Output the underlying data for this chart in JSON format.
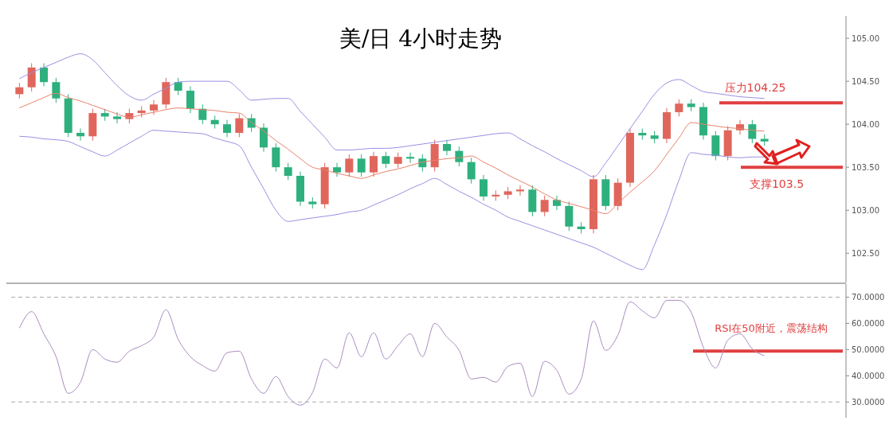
{
  "chart_data": [
    {
      "type": "candlestick",
      "title": "美/日 4小时走势",
      "categories": [
        null,
        null,
        null,
        null,
        null,
        null,
        null,
        null,
        null,
        null,
        null,
        null,
        null,
        null,
        null,
        null,
        null,
        null,
        null,
        null,
        null,
        null,
        null,
        null,
        null,
        null,
        null,
        null,
        null,
        null,
        null,
        null,
        null,
        null,
        null,
        null,
        null,
        null,
        null,
        null,
        null,
        null,
        null,
        null,
        null,
        null,
        null,
        null,
        null,
        null,
        null,
        null,
        null,
        null,
        null,
        null,
        null,
        null,
        null,
        null,
        null,
        null,
        null,
        null,
        null,
        null,
        null,
        null
      ],
      "ohlc": [
        [
          104.35,
          104.48,
          104.3,
          104.43
        ],
        [
          104.43,
          104.71,
          104.38,
          104.66
        ],
        [
          104.66,
          104.71,
          104.44,
          104.49
        ],
        [
          104.49,
          104.54,
          104.25,
          104.3
        ],
        [
          104.3,
          104.35,
          103.85,
          103.9
        ],
        [
          103.9,
          103.95,
          103.81,
          103.86
        ],
        [
          103.86,
          104.18,
          103.81,
          104.13
        ],
        [
          104.13,
          104.18,
          104.04,
          104.09
        ],
        [
          104.09,
          104.14,
          104.01,
          104.06
        ],
        [
          104.06,
          104.18,
          104.01,
          104.13
        ],
        [
          104.13,
          104.21,
          104.08,
          104.16
        ],
        [
          104.16,
          104.28,
          104.11,
          104.23
        ],
        [
          104.23,
          104.54,
          104.18,
          104.49
        ],
        [
          104.49,
          104.54,
          104.34,
          104.39
        ],
        [
          104.39,
          104.44,
          104.13,
          104.18
        ],
        [
          104.18,
          104.23,
          104.0,
          104.05
        ],
        [
          104.05,
          104.1,
          103.95,
          104.0
        ],
        [
          104.0,
          104.05,
          103.85,
          103.9
        ],
        [
          103.9,
          104.12,
          103.85,
          104.07
        ],
        [
          104.07,
          104.12,
          103.91,
          103.96
        ],
        [
          103.96,
          104.01,
          103.68,
          103.73
        ],
        [
          103.73,
          103.78,
          103.45,
          103.5
        ],
        [
          103.5,
          103.55,
          103.35,
          103.4
        ],
        [
          103.4,
          103.45,
          103.05,
          103.1
        ],
        [
          103.1,
          103.15,
          103.02,
          103.07
        ],
        [
          103.07,
          103.55,
          103.02,
          103.5
        ],
        [
          103.5,
          103.55,
          103.39,
          103.44
        ],
        [
          103.44,
          103.65,
          103.39,
          103.6
        ],
        [
          103.6,
          103.65,
          103.39,
          103.44
        ],
        [
          103.44,
          103.68,
          103.39,
          103.63
        ],
        [
          103.63,
          103.68,
          103.49,
          103.54
        ],
        [
          103.54,
          103.67,
          103.49,
          103.62
        ],
        [
          103.62,
          103.67,
          103.55,
          103.6
        ],
        [
          103.6,
          103.65,
          103.45,
          103.5
        ],
        [
          103.5,
          103.82,
          103.45,
          103.77
        ],
        [
          103.77,
          103.82,
          103.64,
          103.69
        ],
        [
          103.69,
          103.74,
          103.51,
          103.56
        ],
        [
          103.56,
          103.61,
          103.31,
          103.36
        ],
        [
          103.36,
          103.41,
          103.11,
          103.16
        ],
        [
          103.16,
          103.23,
          103.11,
          103.18
        ],
        [
          103.18,
          103.27,
          103.13,
          103.22
        ],
        [
          103.22,
          103.29,
          103.17,
          103.24
        ],
        [
          103.24,
          103.29,
          102.93,
          102.98
        ],
        [
          102.98,
          103.17,
          102.93,
          103.12
        ],
        [
          103.12,
          103.17,
          103.0,
          103.05
        ],
        [
          103.05,
          103.1,
          102.76,
          102.81
        ],
        [
          102.81,
          102.86,
          102.73,
          102.78
        ],
        [
          102.78,
          103.41,
          102.73,
          103.36
        ],
        [
          103.36,
          103.41,
          103.0,
          103.05
        ],
        [
          103.05,
          103.37,
          103.0,
          103.32
        ],
        [
          103.32,
          103.95,
          103.27,
          103.9
        ],
        [
          103.9,
          103.95,
          103.82,
          103.87
        ],
        [
          103.87,
          103.92,
          103.78,
          103.83
        ],
        [
          103.83,
          104.19,
          103.78,
          104.14
        ],
        [
          104.14,
          104.29,
          104.09,
          104.24
        ],
        [
          104.24,
          104.29,
          104.15,
          104.2
        ],
        [
          104.2,
          104.25,
          103.82,
          103.87
        ],
        [
          103.87,
          103.92,
          103.58,
          103.63
        ],
        [
          103.63,
          103.98,
          103.58,
          103.93
        ],
        [
          103.93,
          104.05,
          103.88,
          104.0
        ],
        [
          104.0,
          104.05,
          103.78,
          103.83
        ],
        [
          103.83,
          103.88,
          103.75,
          103.8
        ],
        null,
        null,
        null,
        null,
        null,
        null
      ],
      "colors": [
        "#e0665c",
        "#e0665c",
        "#2db07d",
        "#2db07d",
        "#2db07d",
        "#2db07d",
        "#e0665c",
        "#2db07d",
        "#2db07d",
        "#e0665c",
        "#e0665c",
        "#e0665c",
        "#e0665c",
        "#2db07d",
        "#2db07d",
        "#2db07d",
        "#2db07d",
        "#2db07d",
        "#e0665c",
        "#2db07d",
        "#2db07d",
        "#2db07d",
        "#2db07d",
        "#2db07d",
        "#2db07d",
        "#e0665c",
        "#2db07d",
        "#e0665c",
        "#2db07d",
        "#e0665c",
        "#2db07d",
        "#e0665c",
        "#2db07d",
        "#2db07d",
        "#e0665c",
        "#2db07d",
        "#2db07d",
        "#2db07d",
        "#2db07d",
        "#e0665c",
        "#e0665c",
        "#e0665c",
        "#2db07d",
        "#e0665c",
        "#2db07d",
        "#2db07d",
        "#2db07d",
        "#e0665c",
        "#2db07d",
        "#e0665c",
        "#e0665c",
        "#2db07d",
        "#2db07d",
        "#e0665c",
        "#e0665c",
        "#2db07d",
        "#2db07d",
        "#2db07d",
        "#e0665c",
        "#e0665c",
        "#2db07d",
        "#2db07d",
        null,
        null,
        null,
        null,
        null,
        null
      ],
      "series": [
        {
          "type": "line",
          "color": "#9a8fe0",
          "values": [
            104.53,
            104.6,
            104.66,
            104.72,
            104.78,
            104.82,
            104.75,
            104.6,
            104.45,
            104.33,
            104.28,
            104.35,
            104.42,
            104.49,
            104.5,
            104.5,
            104.5,
            104.5,
            104.4,
            104.28,
            104.29,
            104.3,
            104.3,
            104.15,
            104.0,
            103.85,
            103.7,
            103.7,
            103.71,
            103.72,
            103.72,
            103.73,
            103.75,
            103.77,
            103.79,
            103.81,
            103.83,
            103.85,
            103.87,
            103.89,
            103.9,
            103.83,
            103.75,
            103.68,
            103.6,
            103.53,
            103.46,
            103.39,
            103.55,
            103.75,
            103.95,
            104.15,
            104.35,
            104.48,
            104.52,
            104.45,
            104.38,
            104.36,
            104.34,
            104.32,
            104.31,
            104.3,
            null,
            null,
            null,
            null,
            null,
            null
          ]
        },
        {
          "type": "line",
          "color": "#e8826a",
          "values": [
            104.19,
            104.25,
            104.31,
            104.36,
            104.31,
            104.27,
            104.22,
            104.17,
            104.12,
            104.08,
            104.11,
            104.14,
            104.17,
            104.19,
            104.18,
            104.17,
            104.16,
            104.14,
            104.13,
            104.02,
            103.92,
            103.81,
            103.71,
            103.6,
            103.5,
            103.47,
            103.43,
            103.4,
            103.37,
            103.41,
            103.45,
            103.48,
            103.52,
            103.56,
            103.58,
            103.6,
            103.61,
            103.63,
            103.56,
            103.49,
            103.41,
            103.34,
            103.27,
            103.19,
            103.12,
            103.08,
            103.04,
            103.0,
            102.96,
            103.08,
            103.21,
            103.33,
            103.46,
            103.65,
            103.84,
            104.02,
            104.0,
            103.98,
            103.96,
            103.95,
            103.93,
            103.92,
            null,
            null,
            null,
            null,
            null,
            null
          ]
        },
        {
          "type": "line",
          "color": "#9a8fe0",
          "values": [
            103.86,
            103.85,
            103.83,
            103.82,
            103.8,
            103.74,
            103.68,
            103.63,
            103.7,
            103.78,
            103.86,
            103.93,
            103.92,
            103.91,
            103.9,
            103.89,
            103.84,
            103.8,
            103.75,
            103.5,
            103.25,
            103.0,
            102.87,
            102.89,
            102.91,
            102.93,
            102.95,
            102.98,
            103.0,
            103.06,
            103.12,
            103.18,
            103.25,
            103.31,
            103.37,
            103.3,
            103.22,
            103.15,
            103.07,
            103.0,
            102.92,
            102.87,
            102.82,
            102.77,
            102.72,
            102.67,
            102.62,
            102.57,
            102.5,
            102.43,
            102.36,
            102.31,
            102.6,
            102.95,
            103.35,
            103.67,
            103.65,
            103.64,
            103.62,
            103.61,
            103.62,
            103.62,
            null,
            null,
            null,
            null,
            null,
            null
          ]
        }
      ],
      "ylim": [
        102.16,
        105.26
      ],
      "yticks": [
        {
          "value": 102.5,
          "label": "102.50"
        },
        {
          "value": 103,
          "label": "103.00"
        },
        {
          "value": 103.5,
          "label": "103.50"
        },
        {
          "value": 104,
          "label": "104.00"
        },
        {
          "value": 104.5,
          "label": "104.50"
        },
        {
          "value": 105,
          "label": "105.00"
        }
      ],
      "tick_labels": "y",
      "ref_lines": [
        {
          "axis": "y",
          "value": 104.25,
          "label": "压力104.25",
          "color": "#e04040"
        },
        {
          "axis": "y",
          "value": 103.5,
          "label": "支撑103.5",
          "color": "#e04040"
        }
      ]
    },
    {
      "type": "line",
      "categories": [
        null,
        null,
        null,
        null,
        null,
        null,
        null,
        null,
        null,
        null,
        null,
        null,
        null,
        null,
        null,
        null,
        null,
        null,
        null,
        null,
        null,
        null,
        null,
        null,
        null,
        null,
        null,
        null,
        null,
        null,
        null,
        null,
        null,
        null,
        null,
        null,
        null,
        null,
        null,
        null,
        null,
        null,
        null,
        null,
        null,
        null,
        null,
        null,
        null,
        null,
        null,
        null,
        null,
        null,
        null,
        null,
        null,
        null,
        null,
        null,
        null,
        null,
        null,
        null,
        null,
        null,
        null,
        null
      ],
      "series": [
        {
          "color": "#a98bbf",
          "values": [
            58.2,
            64.5,
            56,
            47.3,
            33.3,
            37.6,
            50,
            46.4,
            45.2,
            49.4,
            51.5,
            54.8,
            65.2,
            53.9,
            47.3,
            43.9,
            41.8,
            48.8,
            49.4,
            38.8,
            33.3,
            39.7,
            32.1,
            28.8,
            33.6,
            46.4,
            43,
            56.4,
            47.3,
            56.4,
            46.4,
            51.5,
            56,
            47.3,
            60,
            54.8,
            49.7,
            38.8,
            39.4,
            37.6,
            43.6,
            44.8,
            32.1,
            45.5,
            42.1,
            33,
            38.8,
            60.9,
            49.7,
            55.5,
            68.2,
            64.8,
            62.1,
            68.8,
            68.8,
            64.2,
            50.9,
            43,
            53.6,
            56,
            50.3,
            47.6,
            null,
            null,
            null,
            null,
            null,
            null
          ]
        }
      ],
      "ylim": [
        24,
        75
      ],
      "yticks": [
        {
          "value": 30,
          "label": "30.0000"
        },
        {
          "value": 40,
          "label": "40.0000"
        },
        {
          "value": 50,
          "label": "50.0000"
        },
        {
          "value": 60,
          "label": "60.0000"
        },
        {
          "value": 70,
          "label": "70.0000"
        }
      ],
      "tick_labels": "y",
      "ref_lines": [
        {
          "axis": "y",
          "value": 70,
          "color": "#aaaaaa",
          "line_style": "dashed"
        },
        {
          "axis": "y",
          "value": 30,
          "color": "#aaaaaa",
          "line_style": "dashed"
        },
        {
          "axis": "y",
          "value": 49.4,
          "color": "#e04040"
        }
      ],
      "annotations": [
        "RSI在50附近，震荡结构"
      ]
    }
  ]
}
